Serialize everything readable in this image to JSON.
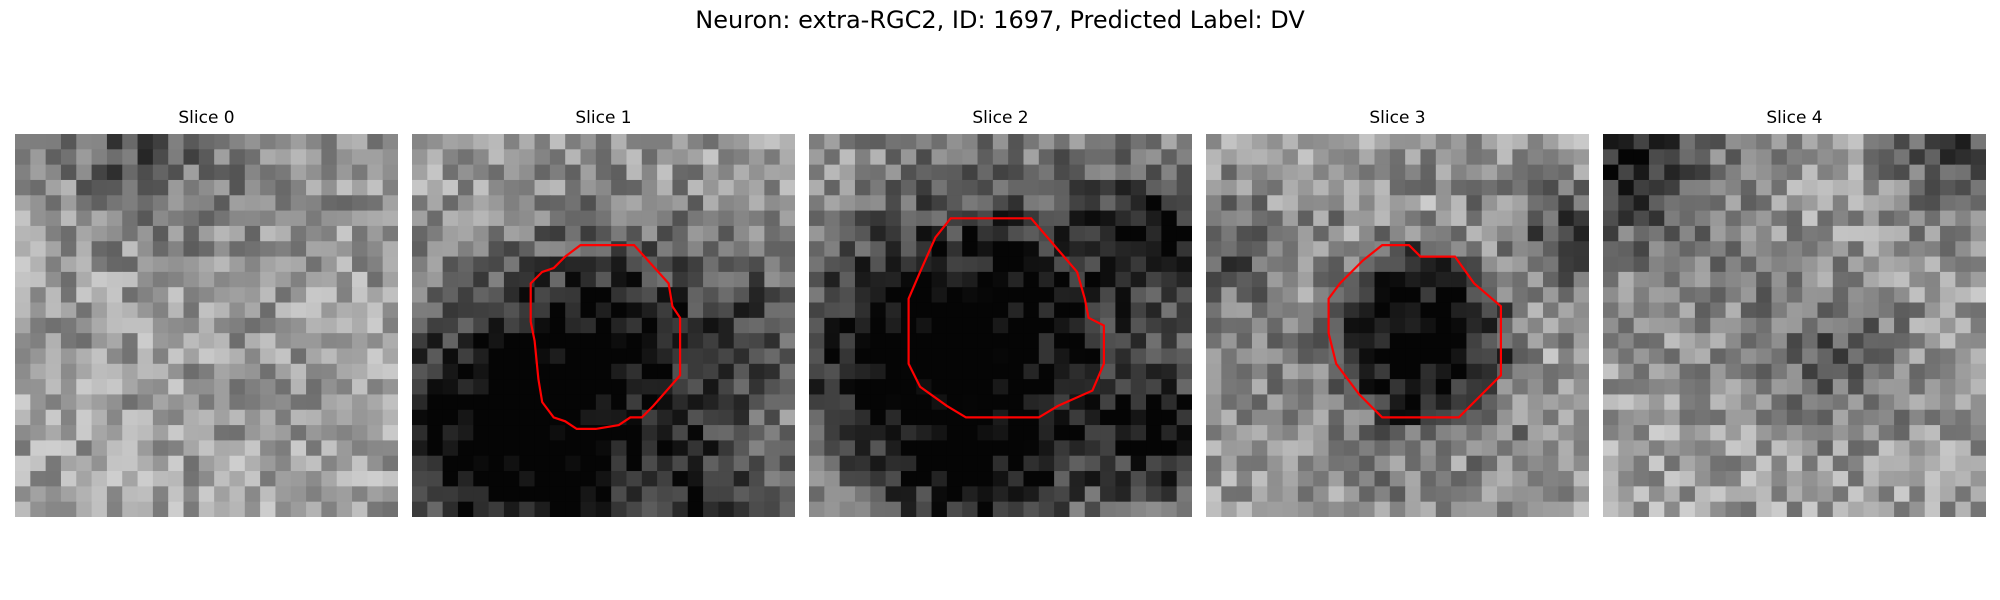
{
  "figure": {
    "title": "Neuron: extra-RGC2, ID: 1697, Predicted Label: DV"
  },
  "panels": [
    {
      "title": "Slice 0",
      "seed": 11,
      "dark": [
        [
          0.55,
          0.1,
          0.22,
          0.1
        ],
        [
          0.3,
          0.05,
          0.12,
          0.25
        ]
      ],
      "contour": false,
      "ring_mode": false
    },
    {
      "title": "Slice 1",
      "seed": 23,
      "dark": [
        [
          0.5,
          0.55,
          0.22,
          0.55
        ],
        [
          0.12,
          0.75,
          0.2,
          0.45
        ],
        [
          0.35,
          0.95,
          0.2,
          0.4
        ],
        [
          0.9,
          0.5,
          0.14,
          0.25
        ],
        [
          0.8,
          0.95,
          0.15,
          0.35
        ]
      ],
      "contour": true,
      "ring_mode": false
    },
    {
      "title": "Slice 2",
      "seed": 37,
      "dark": [
        [
          0.5,
          0.5,
          0.28,
          0.6
        ],
        [
          0.15,
          0.6,
          0.2,
          0.35
        ],
        [
          0.92,
          0.25,
          0.12,
          0.45
        ],
        [
          0.95,
          0.8,
          0.15,
          0.4
        ],
        [
          0.45,
          0.92,
          0.18,
          0.35
        ]
      ],
      "contour": true,
      "ring_mode": false
    },
    {
      "title": "Slice 3",
      "seed": 51,
      "dark": [
        [
          0.55,
          0.55,
          0.2,
          0.65
        ],
        [
          0.02,
          0.3,
          0.1,
          0.35
        ],
        [
          0.95,
          0.25,
          0.1,
          0.3
        ]
      ],
      "contour": true,
      "ring_mode": true
    },
    {
      "title": "Slice 4",
      "seed": 67,
      "dark": [
        [
          0.05,
          0.05,
          0.15,
          0.45
        ],
        [
          0.92,
          0.05,
          0.12,
          0.35
        ],
        [
          0.6,
          0.58,
          0.14,
          0.25
        ],
        [
          0.25,
          0.3,
          0.15,
          0.15
        ]
      ],
      "contour": false,
      "ring_mode": false
    }
  ],
  "colors": {
    "contour": "#ff0000"
  }
}
